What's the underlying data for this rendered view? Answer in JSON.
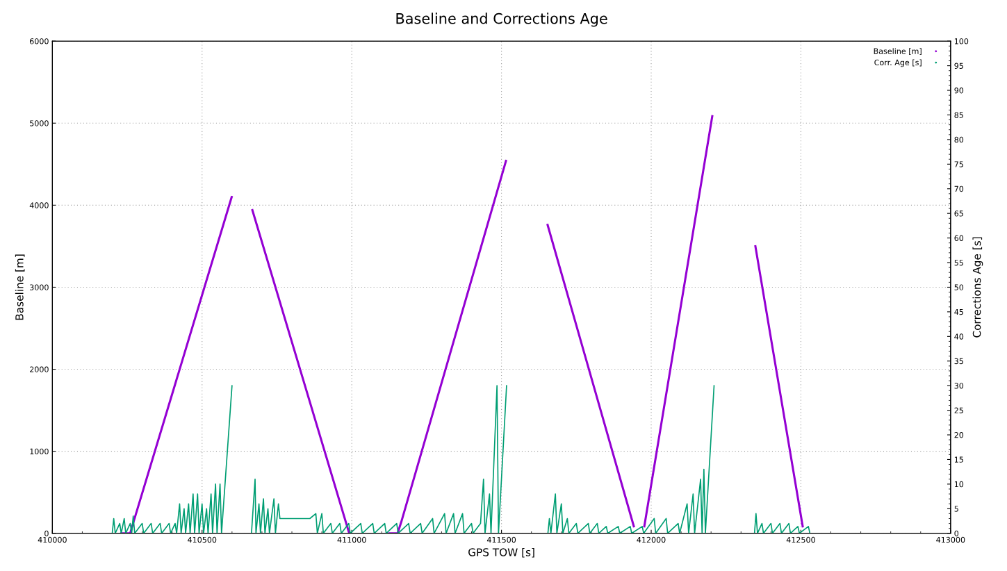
{
  "chart_data": {
    "type": "line",
    "title": "Baseline and Corrections Age",
    "xlabel": "GPS TOW [s]",
    "ylabel": "Baseline [m]",
    "y2label": "Corrections Age [s]",
    "xlim": [
      410000,
      413000
    ],
    "xticks": [
      410000,
      410500,
      411000,
      411500,
      412000,
      412500,
      413000
    ],
    "ylim": [
      0,
      6000
    ],
    "yticks": [
      0,
      1000,
      2000,
      3000,
      4000,
      5000,
      6000
    ],
    "y2lim": [
      0,
      100
    ],
    "y2ticks": [
      0,
      5,
      10,
      15,
      20,
      25,
      30,
      35,
      40,
      45,
      50,
      55,
      60,
      65,
      70,
      75,
      80,
      85,
      90,
      95,
      100
    ],
    "grid": true,
    "legend": "top right",
    "marker": "none",
    "line_style": "solid",
    "series": [
      {
        "name": "Baseline [m]",
        "color": "#9400d3",
        "x": [
          410230,
          410260,
          410267,
          410599,
          410630,
          410668,
          410991,
          411050,
          411125,
          411153,
          411165,
          411515,
          411580,
          411654,
          411942,
          411960,
          411977,
          412204,
          412280,
          412348,
          412506
        ],
        "values": [
          0,
          0,
          90,
          4100,
          null,
          3940,
          5,
          null,
          0,
          0,
          135,
          4540,
          null,
          3760,
          85,
          null,
          85,
          5085,
          null,
          3500,
          85
        ]
      },
      {
        "name": "Corr. Age [s]",
        "color": "#009e73",
        "axis": "y2",
        "x": [
          410200,
          410205,
          410210,
          410225,
          410230,
          410240,
          410245,
          410260,
          410265,
          410270,
          410275,
          410300,
          410305,
          410330,
          410335,
          410360,
          410365,
          410390,
          410395,
          410410,
          410415,
          410425,
          410430,
          410440,
          410445,
          410455,
          410460,
          410470,
          410475,
          410485,
          410490,
          410500,
          410505,
          410515,
          410520,
          410530,
          410535,
          410545,
          410550,
          410560,
          410565,
          410600,
          410630,
          410665,
          410677,
          410680,
          410690,
          410695,
          410705,
          410710,
          410720,
          410725,
          410740,
          410745,
          410755,
          410760,
          410780,
          410800,
          410820,
          410840,
          410860,
          410880,
          410885,
          410900,
          410905,
          410930,
          410935,
          410960,
          410965,
          410990,
          410995,
          411030,
          411035,
          411070,
          411075,
          411110,
          411115,
          411150,
          411155,
          411190,
          411195,
          411230,
          411235,
          411270,
          411275,
          411310,
          411315,
          411340,
          411345,
          411370,
          411375,
          411400,
          411405,
          411430,
          411440,
          411445,
          411460,
          411465,
          411485,
          411490,
          411517,
          411580,
          411655,
          411660,
          411665,
          411680,
          411685,
          411700,
          411705,
          411720,
          411725,
          411750,
          411755,
          411790,
          411795,
          411820,
          411825,
          411850,
          411855,
          411890,
          411895,
          411930,
          411935,
          411970,
          411975,
          412010,
          412015,
          412050,
          412055,
          412090,
          412095,
          412120,
          412125,
          412140,
          412145,
          412165,
          412170,
          412176,
          412181,
          412210,
          412280,
          412345,
          412350,
          412355,
          412370,
          412375,
          412400,
          412405,
          412430,
          412435,
          412460,
          412465,
          412490,
          412495,
          412525,
          412530
        ],
        "values": [
          0,
          3,
          0,
          2,
          0,
          3,
          0,
          2,
          0,
          3.5,
          0,
          2,
          0,
          2,
          0,
          2,
          0,
          2,
          0,
          2,
          0,
          6,
          0,
          5,
          0,
          6,
          0,
          8,
          0,
          8,
          0,
          6,
          0,
          5,
          0,
          8,
          0,
          10,
          0,
          10,
          0,
          30,
          null,
          0,
          11,
          0,
          6,
          0,
          7,
          0,
          5,
          0,
          7,
          0,
          6,
          3,
          3,
          3,
          3,
          3,
          3,
          4,
          0,
          4,
          0,
          2,
          0,
          2,
          0,
          2,
          0,
          2,
          0,
          2,
          0,
          2,
          0,
          2,
          0,
          2,
          0,
          2,
          0,
          3,
          0,
          4,
          0,
          4,
          0,
          4,
          0,
          2,
          0,
          2,
          11,
          0,
          8,
          0,
          30,
          0,
          30,
          null,
          0,
          3,
          0,
          8,
          0,
          6,
          0,
          3,
          0,
          2,
          0,
          2,
          0,
          2,
          0,
          1.4,
          0,
          1.4,
          0,
          1.4,
          0,
          1.4,
          0,
          3,
          0,
          3,
          0,
          2,
          0,
          6,
          0,
          8,
          0,
          11,
          0,
          13,
          0,
          30,
          null,
          0,
          4,
          0,
          2,
          0,
          2,
          0,
          2,
          0,
          2,
          0,
          1.4,
          0,
          1.4,
          0
        ]
      }
    ]
  }
}
